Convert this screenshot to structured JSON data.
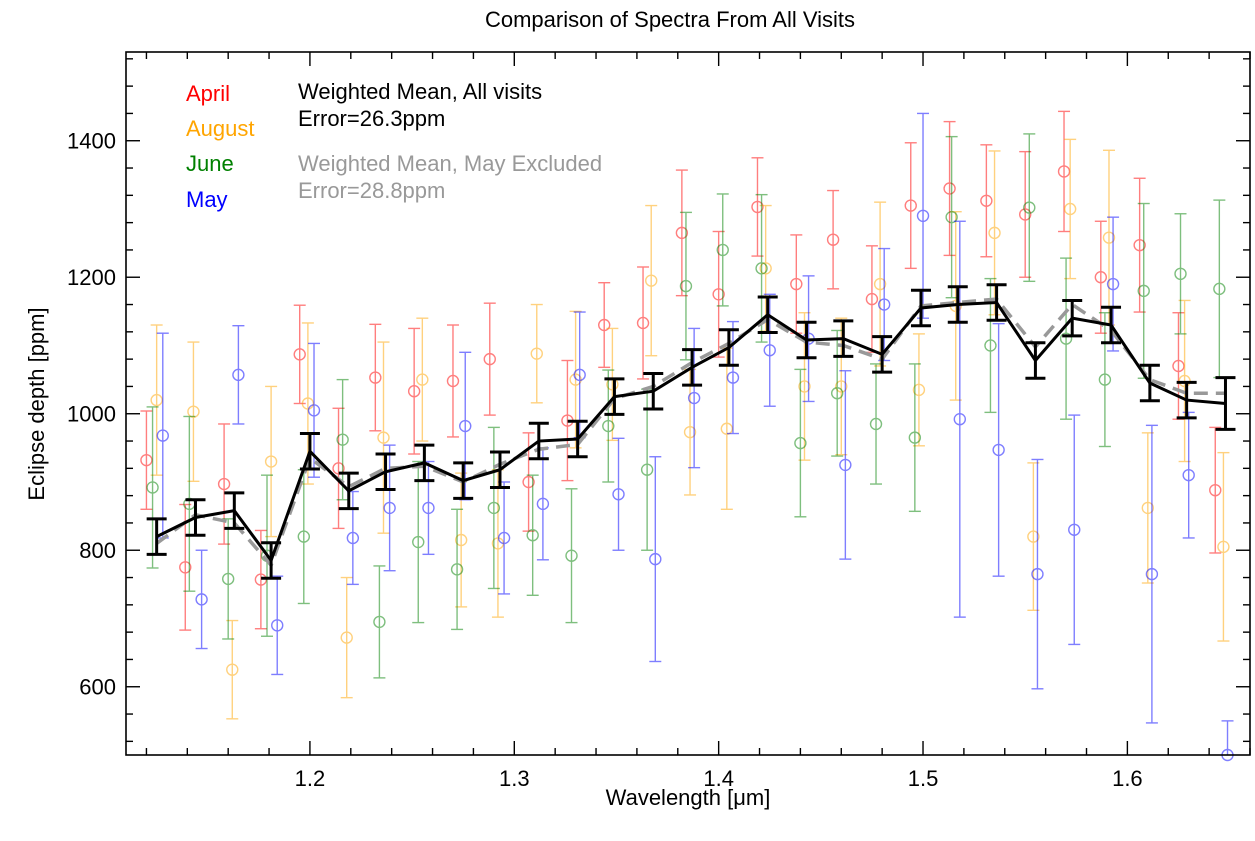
{
  "chart_data": {
    "type": "scatter",
    "title": "Comparison of Spectra From All Visits",
    "xlabel": "Wavelength [μm]",
    "ylabel": "Eclipse depth [ppm]",
    "xlim": [
      1.11,
      1.66
    ],
    "ylim": [
      500,
      1530
    ],
    "x_ticks": [
      1.2,
      1.3,
      1.4,
      1.5,
      1.6
    ],
    "x_tick_labels": [
      "1.2",
      "1.3",
      "1.4",
      "1.5",
      "1.6"
    ],
    "y_ticks": [
      600,
      800,
      1000,
      1200,
      1400
    ],
    "y_tick_labels": [
      "600",
      "800",
      "1000",
      "1200",
      "1400"
    ],
    "grid": false,
    "legend": {
      "placement": "top-left",
      "visits": [
        {
          "name": "April",
          "color": "#ff0000"
        },
        {
          "name": "August",
          "color": "#ffa500"
        },
        {
          "name": "June",
          "color": "#008000"
        },
        {
          "name": "May",
          "color": "#0000ff"
        }
      ],
      "annotations": [
        {
          "line1": "Weighted Mean, All visits",
          "line2": "Error=26.3ppm",
          "color": "#000000"
        },
        {
          "line1": "Weighted Mean, May Excluded",
          "line2": "Error=28.8ppm",
          "color": "#999999"
        }
      ]
    },
    "series": [
      {
        "name": "April",
        "color": "#ff0000",
        "style": "open-circles-errorbars",
        "x": [
          1.12,
          1.139,
          1.158,
          1.176,
          1.195,
          1.214,
          1.232,
          1.251,
          1.27,
          1.288,
          1.307,
          1.326,
          1.344,
          1.363,
          1.382,
          1.4,
          1.419,
          1.438,
          1.456,
          1.475,
          1.494,
          1.513,
          1.531,
          1.55,
          1.569,
          1.587,
          1.606,
          1.625,
          1.643
        ],
        "y": [
          932,
          775,
          897,
          757,
          1087,
          920,
          1053,
          1033,
          1048,
          1080,
          900,
          990,
          1130,
          1133,
          1265,
          1175,
          1303,
          1190,
          1255,
          1168,
          1305,
          1330,
          1312,
          1292,
          1355,
          1200,
          1247,
          1070,
          888
        ],
        "err": [
          72,
          92,
          88,
          72,
          72,
          88,
          78,
          92,
          82,
          82,
          72,
          88,
          62,
          82,
          92,
          92,
          72,
          72,
          72,
          78,
          92,
          98,
          82,
          92,
          88,
          82,
          98,
          78,
          92
        ]
      },
      {
        "name": "August",
        "color": "#ffa500",
        "style": "open-circles-errorbars",
        "x": [
          1.125,
          1.143,
          1.162,
          1.181,
          1.199,
          1.218,
          1.236,
          1.255,
          1.274,
          1.292,
          1.311,
          1.33,
          1.348,
          1.367,
          1.386,
          1.404,
          1.423,
          1.442,
          1.46,
          1.479,
          1.498,
          1.516,
          1.535,
          1.554,
          1.572,
          1.591,
          1.61,
          1.628,
          1.647
        ],
        "y": [
          1020,
          1003,
          625,
          930,
          1015,
          672,
          965,
          1050,
          815,
          810,
          1088,
          1050,
          1043,
          1195,
          973,
          978,
          1213,
          1040,
          1040,
          1190,
          1035,
          1158,
          1265,
          820,
          1300,
          1258,
          862,
          1048,
          805
        ],
        "err": [
          110,
          102,
          72,
          110,
          118,
          88,
          140,
          90,
          98,
          108,
          72,
          100,
          82,
          110,
          92,
          118,
          92,
          108,
          100,
          120,
          82,
          138,
          120,
          108,
          102,
          128,
          110,
          118,
          138
        ]
      },
      {
        "name": "June",
        "color": "#008000",
        "style": "open-circles-errorbars",
        "x": [
          1.123,
          1.141,
          1.16,
          1.179,
          1.197,
          1.216,
          1.234,
          1.253,
          1.272,
          1.29,
          1.309,
          1.328,
          1.346,
          1.365,
          1.384,
          1.402,
          1.421,
          1.44,
          1.458,
          1.477,
          1.496,
          1.514,
          1.533,
          1.552,
          1.57,
          1.589,
          1.608,
          1.626,
          1.645
        ],
        "y": [
          892,
          868,
          758,
          792,
          820,
          962,
          695,
          812,
          772,
          862,
          822,
          792,
          982,
          918,
          1187,
          1240,
          1213,
          957,
          1030,
          985,
          965,
          1288,
          1100,
          1302,
          1110,
          1050,
          1180,
          1205,
          1183
        ],
        "err": [
          118,
          128,
          88,
          118,
          98,
          88,
          82,
          118,
          88,
          118,
          88,
          98,
          82,
          118,
          108,
          82,
          108,
          108,
          92,
          88,
          108,
          118,
          98,
          108,
          118,
          98,
          128,
          88,
          130
        ]
      },
      {
        "name": "May",
        "color": "#0000ff",
        "style": "open-circles-errorbars",
        "x": [
          1.128,
          1.147,
          1.165,
          1.184,
          1.202,
          1.221,
          1.239,
          1.258,
          1.276,
          1.295,
          1.314,
          1.332,
          1.351,
          1.369,
          1.388,
          1.407,
          1.425,
          1.444,
          1.462,
          1.481,
          1.5,
          1.518,
          1.537,
          1.556,
          1.574,
          1.593,
          1.612,
          1.63,
          1.649
        ],
        "y": [
          968,
          728,
          1057,
          690,
          1005,
          818,
          862,
          862,
          982,
          818,
          868,
          1057,
          882,
          787,
          1023,
          1053,
          1093,
          1110,
          925,
          1160,
          1290,
          992,
          947,
          765,
          830,
          1190,
          765,
          910,
          500
        ],
        "err": [
          150,
          72,
          72,
          72,
          98,
          68,
          92,
          68,
          108,
          82,
          82,
          92,
          82,
          150,
          102,
          82,
          82,
          92,
          138,
          82,
          150,
          290,
          185,
          168,
          168,
          98,
          218,
          92,
          50
        ]
      },
      {
        "name": "Weighted Mean, All visits",
        "color": "#000000",
        "style": "solid-line-errorbars",
        "x": [
          1.125,
          1.144,
          1.163,
          1.181,
          1.2,
          1.219,
          1.237,
          1.256,
          1.275,
          1.293,
          1.312,
          1.331,
          1.349,
          1.368,
          1.387,
          1.405,
          1.424,
          1.443,
          1.461,
          1.48,
          1.499,
          1.517,
          1.536,
          1.555,
          1.573,
          1.592,
          1.611,
          1.629,
          1.648
        ],
        "y": [
          820,
          848,
          858,
          785,
          945,
          887,
          915,
          928,
          902,
          918,
          960,
          963,
          1025,
          1033,
          1068,
          1097,
          1145,
          1108,
          1110,
          1087,
          1155,
          1160,
          1163,
          1078,
          1140,
          1130,
          1045,
          1020,
          1015
        ],
        "err": [
          26,
          26,
          26,
          26,
          26,
          26,
          26,
          26,
          26,
          26,
          26,
          26,
          26,
          26,
          26,
          26,
          26,
          26,
          26,
          26,
          26,
          26,
          26,
          26,
          26,
          26,
          26,
          26,
          38
        ]
      },
      {
        "name": "Weighted Mean, May Excluded",
        "color": "#999999",
        "style": "dashed-line",
        "x": [
          1.125,
          1.144,
          1.163,
          1.181,
          1.2,
          1.219,
          1.237,
          1.256,
          1.275,
          1.293,
          1.312,
          1.331,
          1.349,
          1.368,
          1.387,
          1.405,
          1.424,
          1.443,
          1.461,
          1.48,
          1.499,
          1.517,
          1.536,
          1.555,
          1.573,
          1.592,
          1.611,
          1.629,
          1.648
        ],
        "y": [
          810,
          852,
          840,
          778,
          935,
          893,
          920,
          923,
          900,
          926,
          948,
          955,
          1022,
          1040,
          1075,
          1103,
          1138,
          1105,
          1100,
          1080,
          1158,
          1163,
          1168,
          1098,
          1160,
          1122,
          1050,
          1030,
          1030
        ]
      }
    ]
  }
}
